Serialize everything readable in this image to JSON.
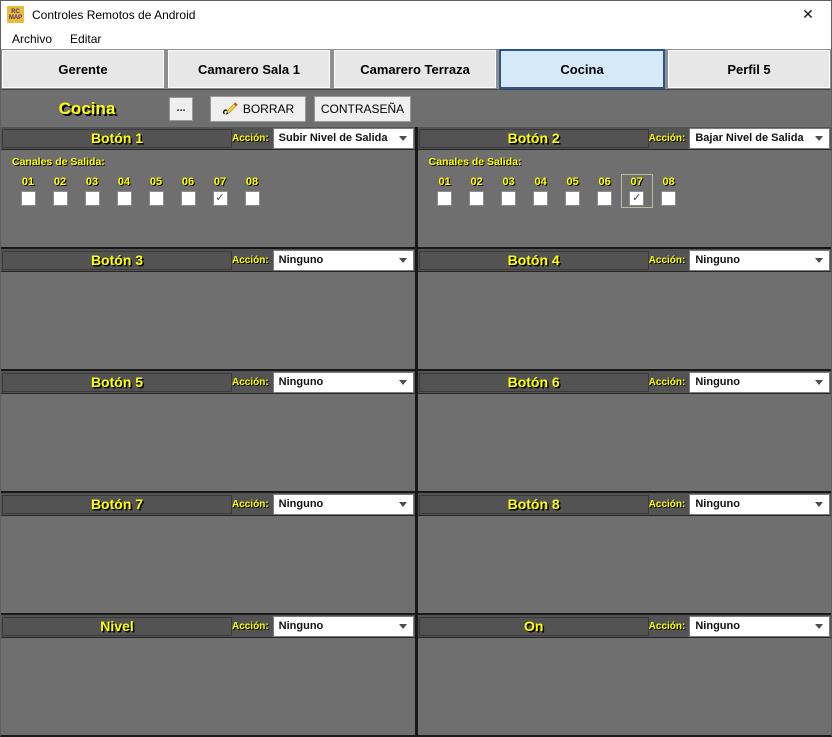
{
  "window": {
    "title": "Controles Remotos de Android",
    "close_glyph": "✕",
    "icon": {
      "line1": "RC",
      "line2": "MAP"
    }
  },
  "menu": {
    "items": [
      "Archivo",
      "Editar"
    ]
  },
  "tabs": {
    "items": [
      {
        "label": "Gerente",
        "selected": false
      },
      {
        "label": "Camarero Sala 1",
        "selected": false
      },
      {
        "label": "Camarero Terraza",
        "selected": false
      },
      {
        "label": "Cocina",
        "selected": true
      },
      {
        "label": "Perfil 5",
        "selected": false
      }
    ]
  },
  "toolbar": {
    "profile_name": "Cocina",
    "more_button": "...",
    "borrar_button": "BORRAR",
    "contrasena_button": "CONTRASEÑA"
  },
  "labels": {
    "action": "Acción:",
    "channels": "Canales de Salida:",
    "check_glyph": "✓"
  },
  "channel_numbers": [
    "01",
    "02",
    "03",
    "04",
    "05",
    "06",
    "07",
    "08"
  ],
  "panels": [
    {
      "title": "Botón 1",
      "action": "Subir Nivel de Salida",
      "has_channels": true,
      "checked": [
        "07"
      ],
      "focused": null
    },
    {
      "title": "Botón 2",
      "action": "Bajar Nivel de Salida",
      "has_channels": true,
      "checked": [
        "07"
      ],
      "focused": "07"
    },
    {
      "title": "Botón 3",
      "action": "Ninguno",
      "has_channels": false
    },
    {
      "title": "Botón 4",
      "action": "Ninguno",
      "has_channels": false
    },
    {
      "title": "Botón 5",
      "action": "Ninguno",
      "has_channels": false
    },
    {
      "title": "Botón 6",
      "action": "Ninguno",
      "has_channels": false
    },
    {
      "title": "Botón 7",
      "action": "Ninguno",
      "has_channels": false
    },
    {
      "title": "Botón 8",
      "action": "Ninguno",
      "has_channels": false
    },
    {
      "title": "Nivel",
      "action": "Ninguno",
      "has_channels": false
    },
    {
      "title": "On",
      "action": "Ninguno",
      "has_channels": false
    }
  ],
  "colors": {
    "accent_yellow": "#ffff00",
    "panel_body_gray": "#6f6f6f",
    "panel_header_gray": "#535353",
    "selected_tab_bg": "#d5e9f8",
    "selected_tab_border": "#27558f",
    "button_face": "#efefef"
  }
}
